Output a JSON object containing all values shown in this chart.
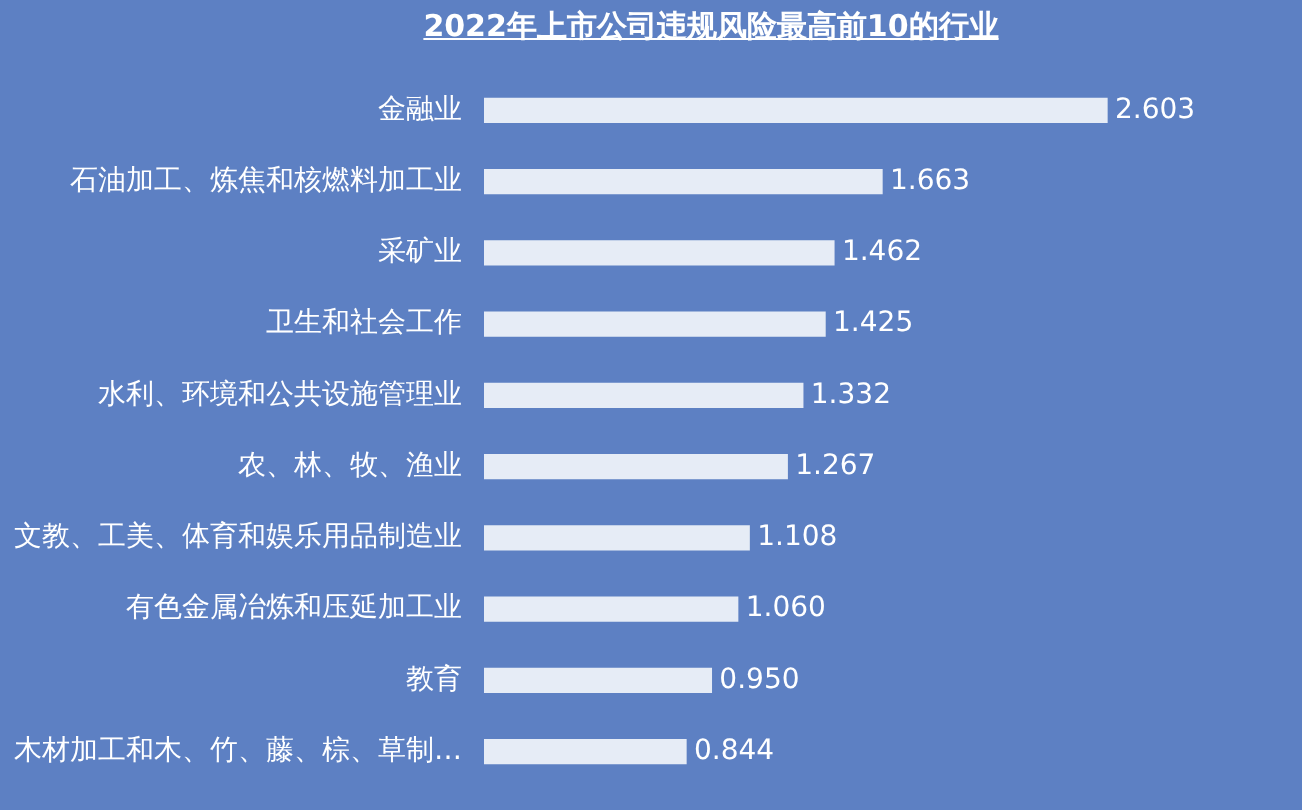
{
  "chart_data": {
    "type": "bar",
    "orientation": "horizontal",
    "title": "2022年上市公司违规风险最高前10的行业",
    "categories": [
      "金融业",
      "石油加工、炼焦和核燃料加工业",
      "采矿业",
      "卫生和社会工作",
      "水利、环境和公共设施管理业",
      "农、林、牧、渔业",
      "文教、工美、体育和娱乐用品制造业",
      "有色金属冶炼和压延加工业",
      "教育",
      "木材加工和木、竹、藤、棕、草制…"
    ],
    "values": [
      2.603,
      1.663,
      1.462,
      1.425,
      1.332,
      1.267,
      1.108,
      1.06,
      0.95,
      0.844
    ],
    "value_labels": [
      "2.603",
      "1.663",
      "1.462",
      "1.425",
      "1.332",
      "1.267",
      "1.108",
      "1.060",
      "0.950",
      "0.844"
    ],
    "color": "#e6ecf6",
    "legend": false,
    "tick_labels": "y"
  }
}
